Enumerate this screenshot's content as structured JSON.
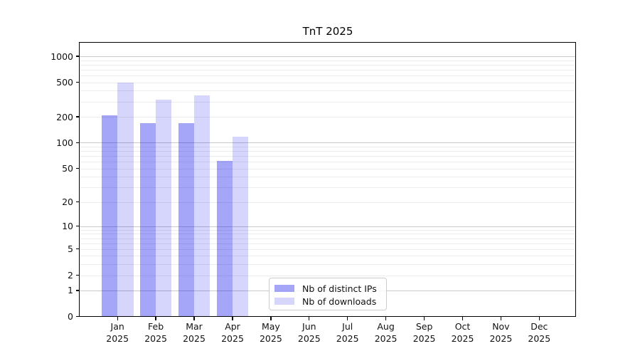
{
  "chart_data": {
    "type": "bar",
    "title": "TnT 2025",
    "scale": "log(1+y), symlog-style with 0 baseline",
    "grid": true,
    "legend_position": "inside bottom-center",
    "year": "2025",
    "categories": [
      "Jan",
      "Feb",
      "Mar",
      "Apr",
      "May",
      "Jun",
      "Jul",
      "Aug",
      "Sep",
      "Oct",
      "Nov",
      "Dec"
    ],
    "series": [
      {
        "name": "Nb of distinct IPs",
        "color": "rgba(0,0,238,0.35)",
        "values": [
          206,
          167,
          170,
          61,
          0,
          0,
          0,
          0,
          0,
          0,
          0,
          0
        ]
      },
      {
        "name": "Nb of downloads",
        "color": "rgba(0,0,238,0.16)",
        "values": [
          500,
          315,
          353,
          118,
          0,
          0,
          0,
          0,
          0,
          0,
          0,
          0
        ]
      }
    ],
    "yticks": [
      0,
      1,
      2,
      5,
      10,
      20,
      50,
      100,
      200,
      500,
      1000
    ],
    "ylim": [
      0,
      1437
    ],
    "xlabel": "",
    "ylabel": ""
  }
}
